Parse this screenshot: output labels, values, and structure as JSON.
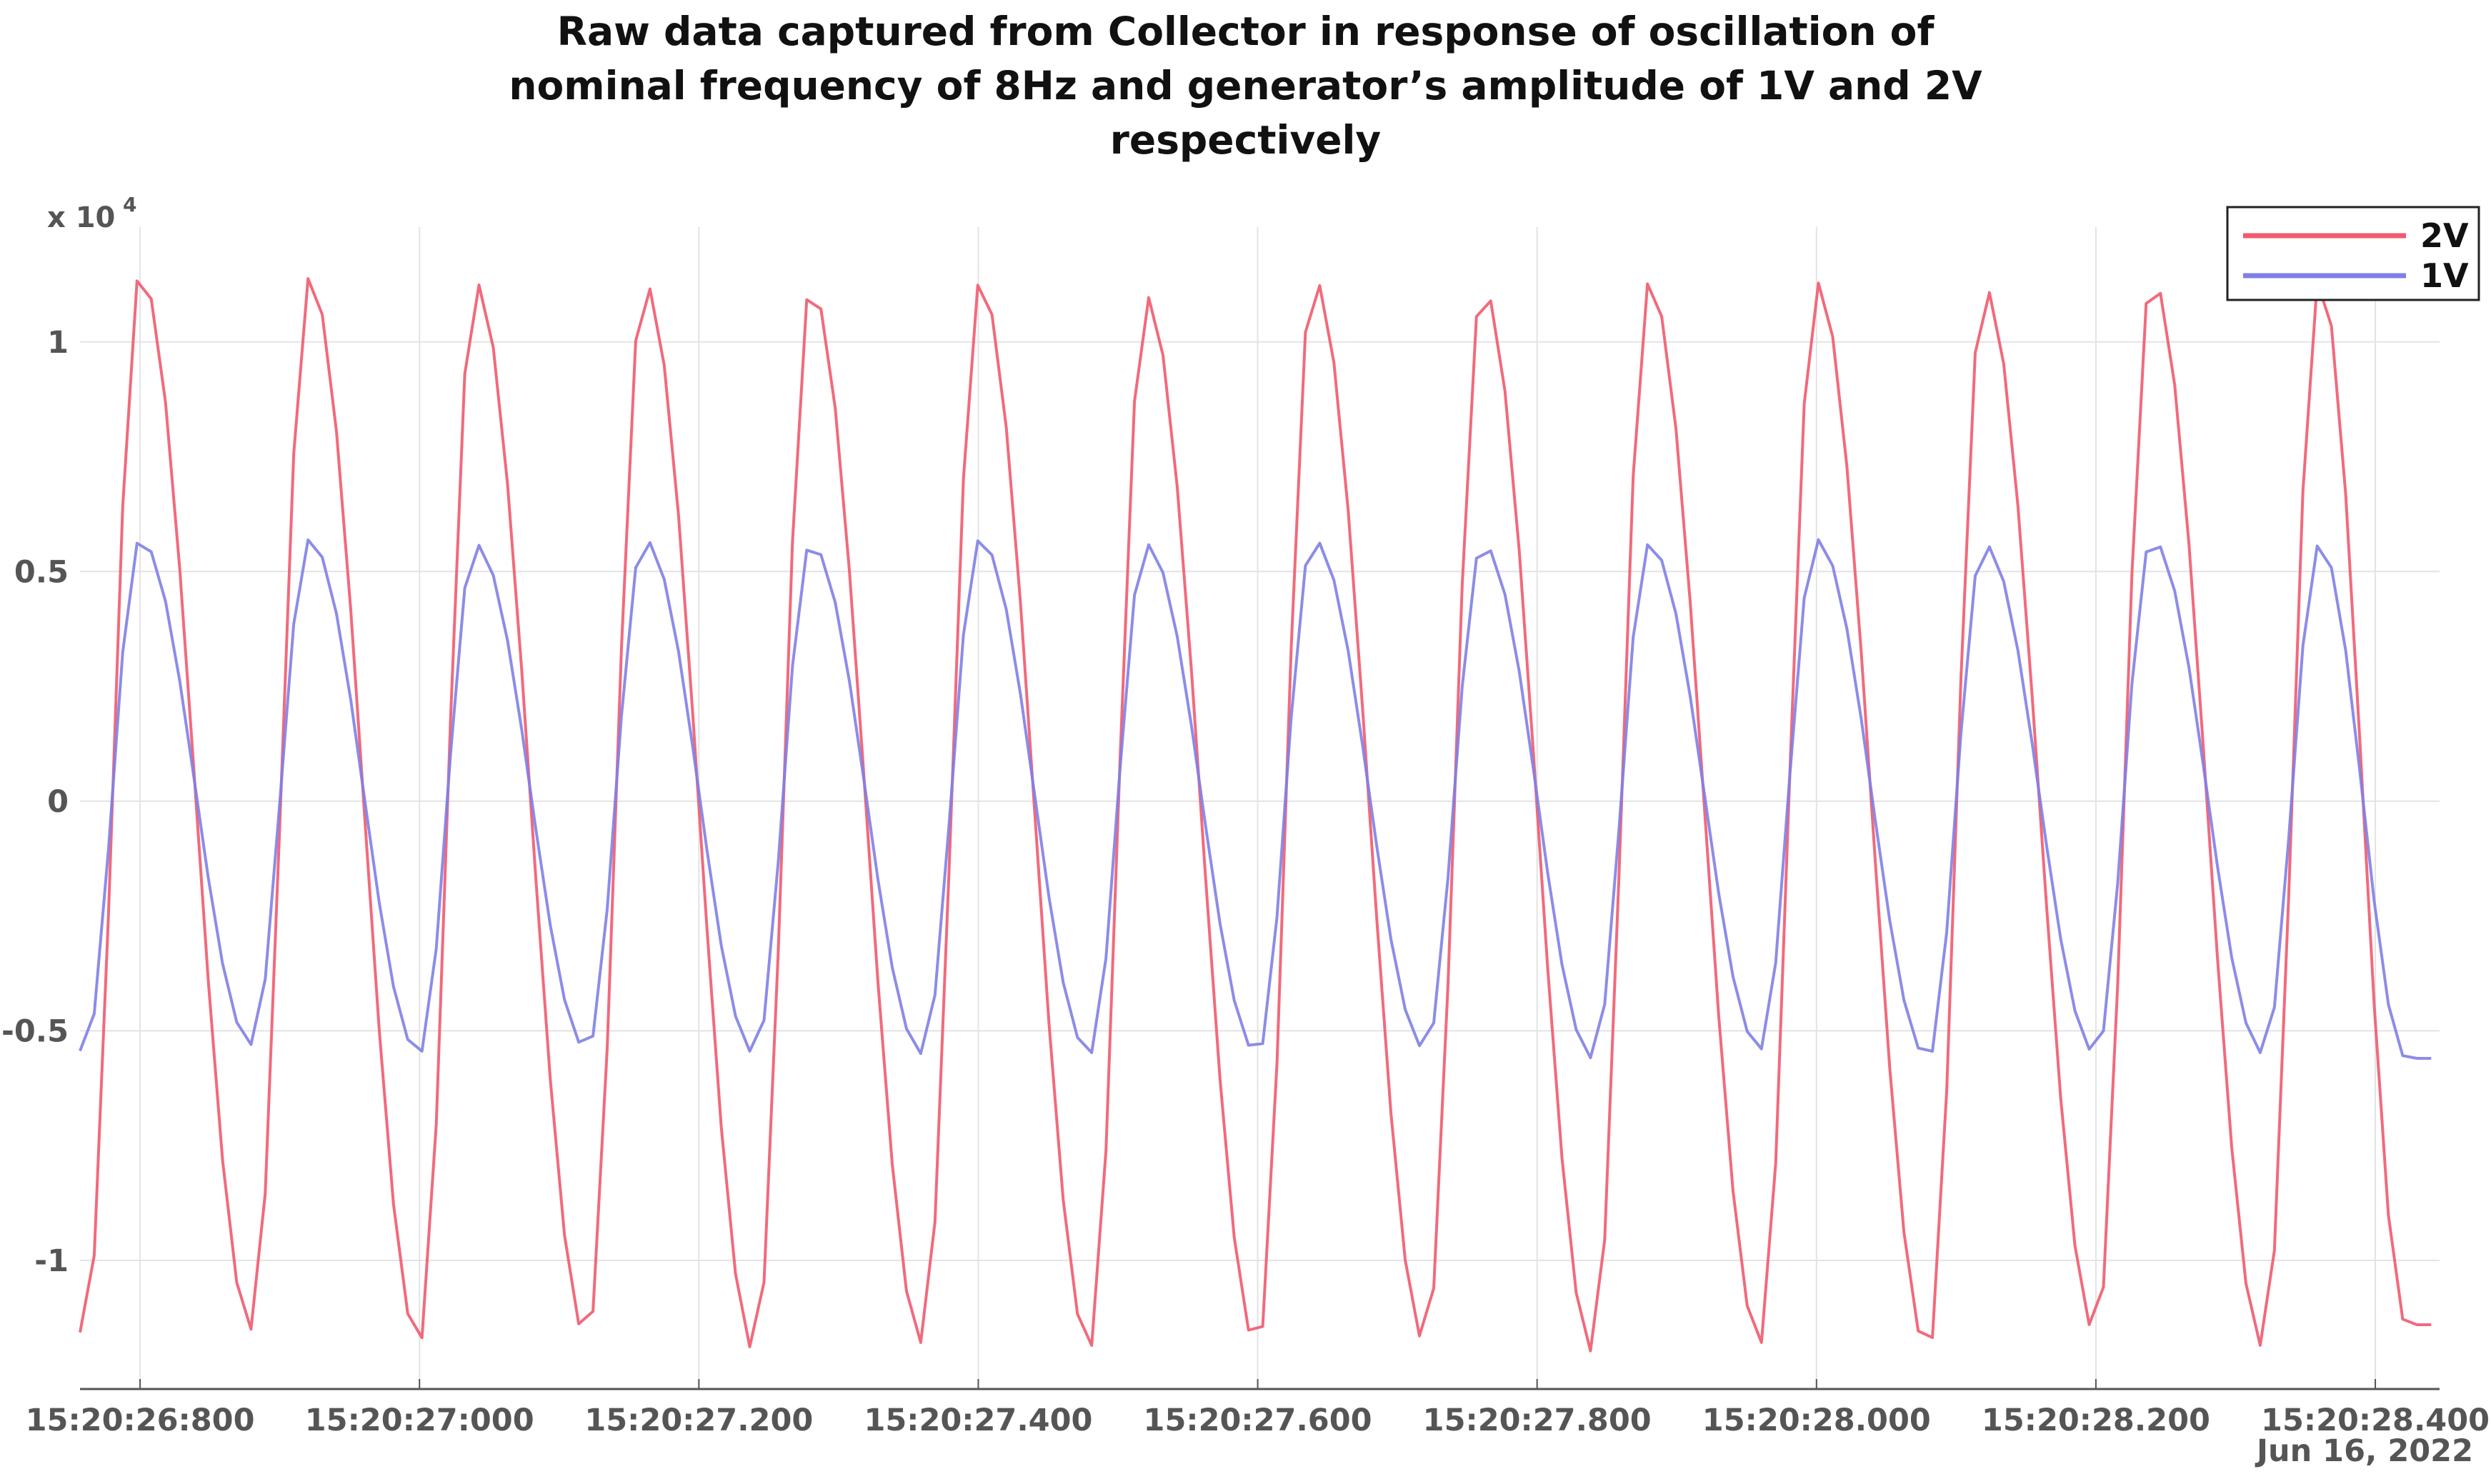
{
  "chart_data": {
    "type": "line",
    "title": "Raw data captured from Collector in response of oscillation of\nnominal frequency of 8Hz and generator’s amplitude of 1V and 2V\nrespectively",
    "xlabel": "",
    "ylabel": "",
    "y_multiplier_label": "x 10",
    "y_multiplier_exponent": "4",
    "date_label": "Jun 16, 2022",
    "xlim": [
      "15:20:26:757",
      "15:20:28.446"
    ],
    "ylim": [
      -1.28,
      1.25
    ],
    "x_ticks": [
      {
        "t": 26.8,
        "label": "15:20:26:800"
      },
      {
        "t": 27.0,
        "label": "15:20:27:000"
      },
      {
        "t": 27.2,
        "label": "15:20:27.200"
      },
      {
        "t": 27.4,
        "label": "15:20:27.400"
      },
      {
        "t": 27.6,
        "label": "15:20:27.600"
      },
      {
        "t": 27.8,
        "label": "15:20:27.800"
      },
      {
        "t": 28.0,
        "label": "15:20:28.000"
      },
      {
        "t": 28.2,
        "label": "15:20:28.200"
      },
      {
        "t": 28.4,
        "label": "15:20:28.400"
      }
    ],
    "y_ticks": [
      {
        "v": 1,
        "label": "1"
      },
      {
        "v": 0.5,
        "label": "0.5"
      },
      {
        "v": 0,
        "label": "0"
      },
      {
        "v": -0.5,
        "label": "-0.5"
      },
      {
        "v": -1,
        "label": "-1"
      }
    ],
    "grid": true,
    "legend_position": "top-right",
    "series": [
      {
        "name": "2V",
        "color": "#f05a6e",
        "frequency_hz": 8,
        "amplitude": 1.17,
        "peaks": [
          {
            "t": 26.8,
            "v": 1.15
          },
          {
            "t": 26.921,
            "v": 1.14
          },
          {
            "t": 27.04,
            "v": 1.13
          },
          {
            "t": 27.161,
            "v": 1.13
          },
          {
            "t": 27.28,
            "v": 1.12
          },
          {
            "t": 27.401,
            "v": 1.13
          },
          {
            "t": 27.52,
            "v": 1.1
          },
          {
            "t": 27.64,
            "v": 1.14
          },
          {
            "t": 27.761,
            "v": 1.12
          },
          {
            "t": 27.88,
            "v": 1.13
          },
          {
            "t": 28.0,
            "v": 1.13
          },
          {
            "t": 28.12,
            "v": 1.12
          },
          {
            "t": 28.24,
            "v": 1.14
          },
          {
            "t": 28.36,
            "v": 1.14
          }
        ],
        "troughs": [
          {
            "t": 26.76,
            "v": -1.17
          },
          {
            "t": 26.88,
            "v": -1.15
          },
          {
            "t": 27.0,
            "v": -1.18
          },
          {
            "t": 27.12,
            "v": -1.17
          },
          {
            "t": 27.24,
            "v": -1.2
          },
          {
            "t": 27.36,
            "v": -1.18
          },
          {
            "t": 27.48,
            "v": -1.19
          },
          {
            "t": 27.6,
            "v": -1.19
          },
          {
            "t": 27.72,
            "v": -1.18
          },
          {
            "t": 27.84,
            "v": -1.2
          },
          {
            "t": 27.96,
            "v": -1.18
          },
          {
            "t": 28.08,
            "v": -1.2
          },
          {
            "t": 28.2,
            "v": -1.16
          },
          {
            "t": 28.32,
            "v": -1.19
          }
        ]
      },
      {
        "name": "1V",
        "color": "#7f7fe6",
        "frequency_hz": 8,
        "amplitude": 0.56,
        "peaks": [
          {
            "t": 26.8,
            "v": 0.57
          },
          {
            "t": 26.921,
            "v": 0.57
          },
          {
            "t": 27.04,
            "v": 0.56
          },
          {
            "t": 27.161,
            "v": 0.57
          },
          {
            "t": 27.28,
            "v": 0.56
          },
          {
            "t": 27.401,
            "v": 0.57
          },
          {
            "t": 27.52,
            "v": 0.56
          },
          {
            "t": 27.64,
            "v": 0.57
          },
          {
            "t": 27.761,
            "v": 0.56
          },
          {
            "t": 27.88,
            "v": 0.56
          },
          {
            "t": 28.0,
            "v": 0.57
          },
          {
            "t": 28.12,
            "v": 0.56
          },
          {
            "t": 28.24,
            "v": 0.57
          },
          {
            "t": 28.36,
            "v": 0.56
          }
        ],
        "troughs": [
          {
            "t": 26.76,
            "v": -0.55
          },
          {
            "t": 26.88,
            "v": -0.53
          },
          {
            "t": 27.0,
            "v": -0.55
          },
          {
            "t": 27.12,
            "v": -0.54
          },
          {
            "t": 27.24,
            "v": -0.55
          },
          {
            "t": 27.36,
            "v": -0.55
          },
          {
            "t": 27.48,
            "v": -0.55
          },
          {
            "t": 27.6,
            "v": -0.55
          },
          {
            "t": 27.72,
            "v": -0.54
          },
          {
            "t": 27.84,
            "v": -0.56
          },
          {
            "t": 27.96,
            "v": -0.54
          },
          {
            "t": 28.08,
            "v": -0.56
          },
          {
            "t": 28.2,
            "v": -0.55
          },
          {
            "t": 28.32,
            "v": -0.55
          }
        ]
      }
    ]
  }
}
